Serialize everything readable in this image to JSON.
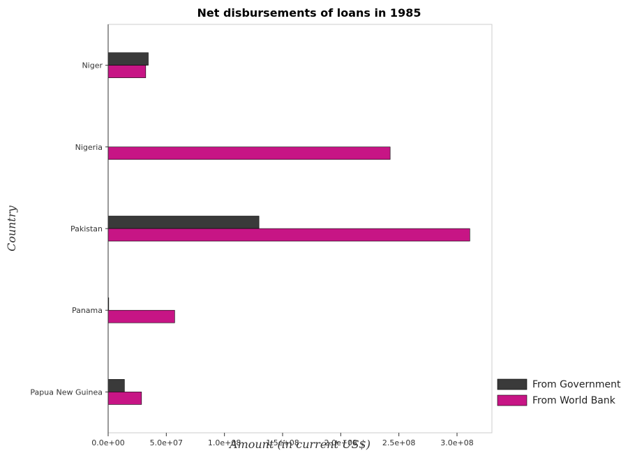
{
  "chart_data": {
    "type": "bar",
    "orientation": "horizontal",
    "title": "Net disbursements of loans in 1985",
    "xlabel": "Amount (in current US$)",
    "ylabel": "Country",
    "categories": [
      "Niger",
      "Nigeria",
      "Pakistan",
      "Panama",
      "Papua New Guinea"
    ],
    "series": [
      {
        "name": "From Government",
        "color": "#3a3a3a",
        "values": [
          34500000,
          0,
          129700000,
          500000,
          14000000
        ]
      },
      {
        "name": "From World Bank",
        "color": "#c71585",
        "values": [
          32300000,
          242500000,
          311000000,
          57200000,
          28700000
        ]
      }
    ],
    "xlim": [
      0,
      330000000
    ],
    "xticks": [
      0,
      50000000,
      100000000,
      150000000,
      200000000,
      250000000,
      300000000
    ],
    "xtick_labels": [
      "0.0e+00",
      "5.0e+07",
      "1.0e+08",
      "1.5e+08",
      "2.0e+08",
      "2.5e+08",
      "3.0e+08"
    ],
    "legend_position": "bottom-right",
    "grid": false
  }
}
